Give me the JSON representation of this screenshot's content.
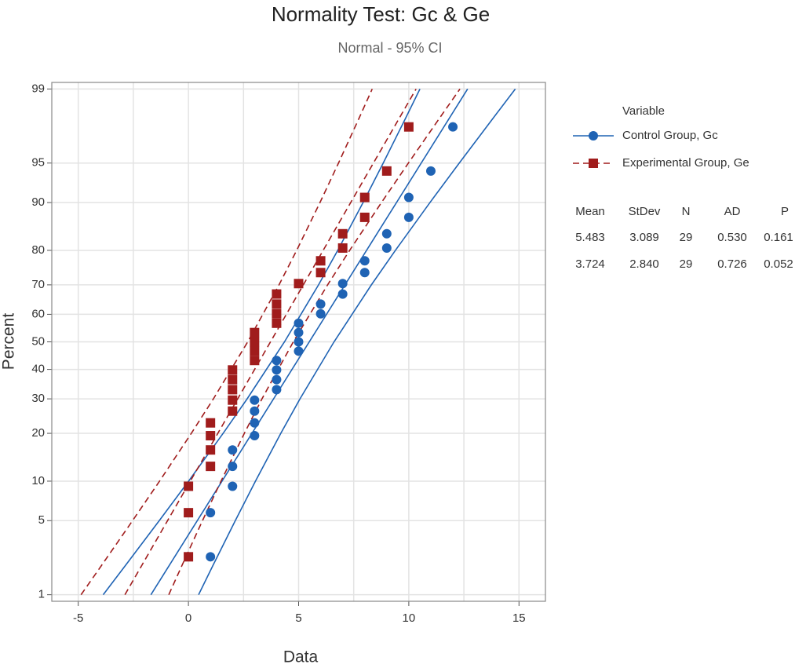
{
  "chart_data": {
    "type": "probability",
    "title": "Normality Test: Gc & Ge",
    "subtitle": "Normal - 95% CI",
    "xlabel": "Data",
    "ylabel": "Percent",
    "xlim": [
      -6.2,
      16.2
    ],
    "ylim": [
      0.85,
      99.15
    ],
    "xticks": [
      -5,
      0,
      5,
      10,
      15
    ],
    "xgrid": [
      -5,
      -2.5,
      0,
      2.5,
      5,
      7.5,
      10,
      12.5,
      15
    ],
    "yticks": [
      1,
      5,
      10,
      20,
      30,
      40,
      50,
      60,
      70,
      80,
      90,
      95,
      99
    ],
    "yscale": "normal-probability",
    "grid": true,
    "legend_title": "Variable",
    "series": [
      {
        "name": "Control Group, Gc",
        "color": "#1f63b4",
        "marker": "circle",
        "dashed": false,
        "x": [
          1,
          1,
          2,
          2,
          2,
          3,
          3,
          3,
          3,
          4,
          4,
          4,
          4,
          5,
          5,
          5,
          5,
          6,
          6,
          7,
          7,
          8,
          8,
          9,
          9,
          10,
          10,
          11,
          12
        ],
        "y": [
          2.4,
          5.8,
          9.2,
          12.6,
          16.0,
          19.4,
          22.8,
          26.2,
          29.6,
          33.0,
          36.4,
          39.8,
          43.2,
          46.6,
          50.0,
          53.4,
          56.8,
          60.2,
          63.6,
          67.0,
          70.4,
          73.8,
          77.2,
          80.6,
          84.0,
          87.4,
          90.8,
          94.2,
          97.6
        ],
        "fit": {
          "percent": [
            1,
            99
          ],
          "x": [
            -1.703,
            12.669
          ]
        },
        "ci_percent": [
          1,
          2,
          5,
          10,
          20,
          30,
          50,
          70,
          80,
          90,
          95,
          98,
          99
        ],
        "ci_lower": [
          -3.867,
          -2.845,
          -1.323,
          0.007,
          1.574,
          2.664,
          4.359,
          5.904,
          6.774,
          7.925,
          8.839,
          9.845,
          10.505
        ],
        "ci_upper": [
          0.461,
          1.121,
          2.127,
          3.041,
          4.192,
          5.062,
          6.607,
          8.302,
          9.392,
          10.959,
          12.289,
          13.811,
          14.833
        ]
      },
      {
        "name": "Experimental Group, Ge",
        "color": "#a01c1c",
        "marker": "square",
        "dashed": true,
        "x": [
          0,
          0,
          0,
          1,
          1,
          1,
          1,
          2,
          2,
          2,
          2,
          2,
          3,
          3,
          3,
          3,
          4,
          4,
          4,
          4,
          5,
          6,
          6,
          7,
          7,
          8,
          8,
          9,
          10
        ],
        "y": [
          2.4,
          5.8,
          9.2,
          12.6,
          16.0,
          19.4,
          22.8,
          26.2,
          29.6,
          33.0,
          36.4,
          39.8,
          43.2,
          46.6,
          50.0,
          53.4,
          56.8,
          60.2,
          63.6,
          67.0,
          70.4,
          73.8,
          77.2,
          80.6,
          84.0,
          87.4,
          90.8,
          94.2,
          97.6
        ],
        "fit": {
          "percent": [
            1,
            99
          ],
          "x": [
            -2.882,
            10.33
          ]
        },
        "ci_percent": [
          1,
          2,
          5,
          10,
          20,
          30,
          50,
          70,
          80,
          90,
          95,
          98,
          99
        ],
        "ci_lower": [
          -4.872,
          -3.932,
          -2.534,
          -1.311,
          0.131,
          1.133,
          2.69,
          4.111,
          4.911,
          5.969,
          6.81,
          7.734,
          8.34
        ],
        "ci_upper": [
          -0.892,
          -0.286,
          0.638,
          1.479,
          2.537,
          3.337,
          4.758,
          6.315,
          7.317,
          8.759,
          9.982,
          11.38,
          12.32
        ]
      }
    ],
    "stats": {
      "columns": [
        "Mean",
        "StDev",
        "N",
        "AD",
        "P"
      ],
      "rows": [
        [
          "5.483",
          "3.089",
          "29",
          "0.530",
          "0.161"
        ],
        [
          "3.724",
          "2.840",
          "29",
          "0.726",
          "0.052"
        ]
      ]
    }
  }
}
